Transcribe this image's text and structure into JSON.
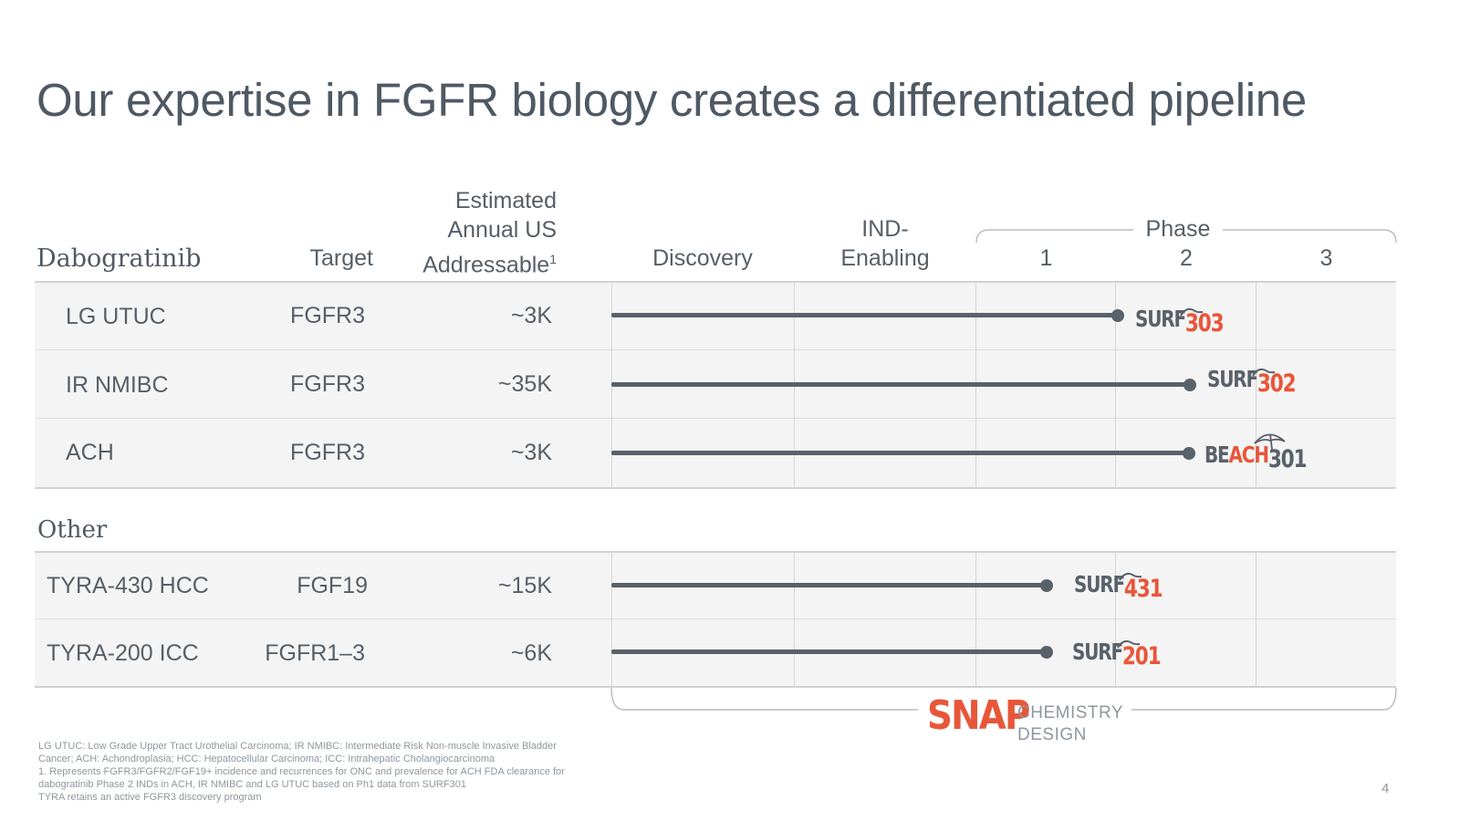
{
  "title": "Our expertise in FGFR biology creates a differentiated pipeline",
  "columns": {
    "program": "Dabogratinib",
    "target": "Target",
    "addressable": [
      "Estimated",
      "Annual US",
      "Addressable"
    ],
    "addressable_sup": "1",
    "discovery": "Discovery",
    "ind": [
      "IND-",
      "Enabling"
    ],
    "phase": "Phase",
    "phases": [
      "1",
      "2",
      "3"
    ]
  },
  "dabogratinib_rows": [
    {
      "indication": "LG UTUC",
      "target": "FGFR3",
      "addressable": "~3K",
      "trial": {
        "prefix": "SURF",
        "number": "303"
      }
    },
    {
      "indication": "IR NMIBC",
      "target": "FGFR3",
      "addressable": "~35K",
      "trial": {
        "prefix": "SURF",
        "number": "302"
      }
    },
    {
      "indication": "ACH",
      "target": "FGFR3",
      "addressable": "~3K",
      "trial": {
        "prefix": "BE",
        "accent": "ACH",
        "number": "301"
      }
    }
  ],
  "other_label": "Other",
  "other_rows": [
    {
      "indication": "TYRA-430 HCC",
      "target": "FGF19",
      "addressable": "~15K",
      "trial": {
        "prefix": "SURF",
        "number": "431"
      }
    },
    {
      "indication": "TYRA-200 ICC",
      "target": "FGFR1–3",
      "addressable": "~6K",
      "trial": {
        "prefix": "SURF",
        "number": "201"
      }
    }
  ],
  "progress": [
    {
      "row": "LG UTUC",
      "stage_fraction": 0.645
    },
    {
      "row": "IR NMIBC",
      "stage_fraction": 0.737
    },
    {
      "row": "ACH",
      "stage_fraction": 0.736
    },
    {
      "row": "TYRA-430 HCC",
      "stage_fraction": 0.555
    },
    {
      "row": "TYRA-200 ICC",
      "stage_fraction": 0.555
    }
  ],
  "snap": {
    "name": "SNAP",
    "chemistry": "CHEMISTRY",
    "design": "DESIGN"
  },
  "footnotes": [
    "LG UTUC: Low Grade Upper Tract Urothelial Carcinoma; IR NMIBC: Intermediate Risk Non-muscle Invasive Bladder",
    "Cancer; ACH: Achondroplasia; HCC: Hepatocellular Carcinoma; ICC: Intrahepatic Cholangiocarcinoma",
    "1. Represents FGFR3/FGFR2/FGF19+ incidence and recurrences for ONC and prevalence for ACH FDA clearance for",
    "dabogratinib Phase 2 INDs in ACH, IR NMIBC and LG UTUC based on Ph1 data from SURF301",
    "TYRA retains an active FGFR3 discovery program"
  ],
  "page_number": "4",
  "colors": {
    "text": "#565f68",
    "accent": "#e8563a",
    "bar": "#59616a",
    "band": "#f4f4f4"
  }
}
